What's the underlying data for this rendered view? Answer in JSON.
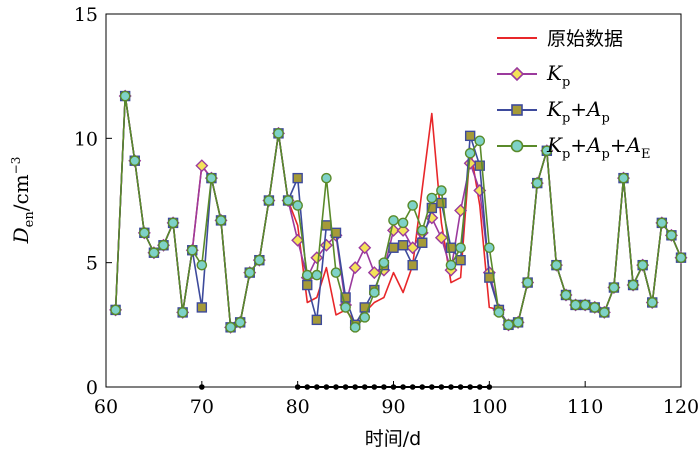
{
  "chart_data": {
    "type": "line",
    "xlabel": "时间/d",
    "ylabel": {
      "main": "D",
      "sub": "en",
      "unit": "/cm",
      "sup": "−3"
    },
    "xlim": [
      60,
      120
    ],
    "ylim": [
      0,
      15
    ],
    "xticks": [
      "60",
      "70",
      "80",
      "90",
      "100",
      "110",
      "120"
    ],
    "yticks": [
      "0",
      "5",
      "10",
      "15"
    ],
    "grid": false,
    "legend_position": "top-right",
    "series": [
      {
        "name": "原始数据",
        "color": "#e8272a",
        "marker": "none",
        "x": [
          61,
          62,
          63,
          64,
          65,
          66,
          67,
          68,
          69,
          70,
          71,
          72,
          73,
          74,
          75,
          76,
          77,
          78,
          79,
          80,
          81,
          82,
          83,
          84,
          85,
          86,
          87,
          88,
          89,
          90,
          91,
          92,
          93,
          94,
          95,
          96,
          97,
          98,
          99,
          100,
          101,
          102,
          103,
          104,
          105,
          106,
          107,
          108,
          109,
          110,
          111,
          112,
          113,
          114,
          115,
          116,
          117,
          118,
          119,
          120
        ],
        "values": [
          3.1,
          11.7,
          9.1,
          6.2,
          5.4,
          5.7,
          6.6,
          3.0,
          5.5,
          8.9,
          8.4,
          6.7,
          2.4,
          2.6,
          4.6,
          5.1,
          7.5,
          10.2,
          7.5,
          6.5,
          3.4,
          3.6,
          4.8,
          2.9,
          3.1,
          2.6,
          3.0,
          3.4,
          3.6,
          4.6,
          3.8,
          4.9,
          8.0,
          11.0,
          6.6,
          4.2,
          4.4,
          9.6,
          7.3,
          3.2,
          3.1,
          2.5,
          2.6,
          4.2,
          8.2,
          9.5,
          4.9,
          3.7,
          3.3,
          3.3,
          3.2,
          3.0,
          4.0,
          8.4,
          4.1,
          4.9,
          3.4,
          6.6,
          6.1,
          5.2
        ]
      },
      {
        "name": "Kp",
        "color": "#9b3a9d",
        "fill": "#f3e35a",
        "marker": "diamond",
        "x": [
          61,
          62,
          63,
          64,
          65,
          66,
          67,
          68,
          69,
          70,
          71,
          72,
          73,
          74,
          75,
          76,
          77,
          78,
          79,
          80,
          81,
          82,
          83,
          84,
          85,
          86,
          87,
          88,
          89,
          90,
          91,
          92,
          93,
          94,
          95,
          96,
          97,
          98,
          99,
          100,
          101,
          102,
          103,
          104,
          105,
          106,
          107,
          108,
          109,
          110,
          111,
          112,
          113,
          114,
          115,
          116,
          117,
          118,
          119,
          120
        ],
        "values": [
          3.1,
          11.7,
          9.1,
          6.2,
          5.4,
          5.7,
          6.6,
          3.0,
          5.5,
          8.9,
          8.4,
          6.7,
          2.4,
          2.6,
          4.6,
          5.1,
          7.5,
          10.2,
          7.5,
          5.9,
          4.4,
          5.2,
          5.7,
          6.1,
          3.3,
          4.8,
          5.6,
          4.6,
          4.7,
          6.3,
          6.3,
          5.6,
          6.2,
          6.8,
          6.0,
          4.7,
          7.1,
          9.0,
          7.9,
          4.6,
          3.1,
          2.5,
          2.6,
          4.2,
          8.2,
          9.5,
          4.9,
          3.7,
          3.3,
          3.3,
          3.2,
          3.0,
          4.0,
          8.4,
          4.1,
          4.9,
          3.4,
          6.6,
          6.1,
          5.2
        ]
      },
      {
        "name": "Kp+Ap",
        "color": "#3d4a9c",
        "fill": "#a59a38",
        "marker": "square",
        "x": [
          61,
          62,
          63,
          64,
          65,
          66,
          67,
          68,
          69,
          70,
          71,
          72,
          73,
          74,
          75,
          76,
          77,
          78,
          79,
          80,
          81,
          82,
          83,
          84,
          85,
          86,
          87,
          88,
          89,
          90,
          91,
          92,
          93,
          94,
          95,
          96,
          97,
          98,
          99,
          100,
          101,
          102,
          103,
          104,
          105,
          106,
          107,
          108,
          109,
          110,
          111,
          112,
          113,
          114,
          115,
          116,
          117,
          118,
          119,
          120
        ],
        "values": [
          3.1,
          11.7,
          9.1,
          6.2,
          5.4,
          5.7,
          6.6,
          3.0,
          5.5,
          3.2,
          8.4,
          6.7,
          2.4,
          2.6,
          4.6,
          5.1,
          7.5,
          10.2,
          7.5,
          8.4,
          4.1,
          2.7,
          6.5,
          6.2,
          3.6,
          2.5,
          3.2,
          3.9,
          4.9,
          5.6,
          5.7,
          4.9,
          5.8,
          7.2,
          7.4,
          5.6,
          5.1,
          10.1,
          8.9,
          4.4,
          3.1,
          2.5,
          2.6,
          4.2,
          8.2,
          9.5,
          4.9,
          3.7,
          3.3,
          3.3,
          3.2,
          3.0,
          4.0,
          8.4,
          4.1,
          4.9,
          3.4,
          6.6,
          6.1,
          5.2
        ]
      },
      {
        "name": "Kp+Ap+AE",
        "color": "#5a8a2a",
        "fill": "#7ed2c8",
        "marker": "circle",
        "x": [
          61,
          62,
          63,
          64,
          65,
          66,
          67,
          68,
          69,
          70,
          71,
          72,
          73,
          74,
          75,
          76,
          77,
          78,
          79,
          80,
          81,
          82,
          83,
          84,
          85,
          86,
          87,
          88,
          89,
          90,
          91,
          92,
          93,
          94,
          95,
          96,
          97,
          98,
          99,
          100,
          101,
          102,
          103,
          104,
          105,
          106,
          107,
          108,
          109,
          110,
          111,
          112,
          113,
          114,
          115,
          116,
          117,
          118,
          119,
          120
        ],
        "values": [
          3.1,
          11.7,
          9.1,
          6.2,
          5.4,
          5.7,
          6.6,
          3.0,
          5.5,
          4.9,
          8.4,
          6.7,
          2.4,
          2.6,
          4.6,
          5.1,
          7.5,
          10.2,
          7.5,
          7.3,
          4.5,
          4.5,
          8.4,
          4.6,
          3.2,
          2.4,
          2.8,
          3.8,
          5.0,
          6.7,
          6.6,
          7.3,
          6.3,
          7.6,
          7.9,
          4.9,
          5.6,
          9.4,
          9.9,
          5.6,
          3.0,
          2.5,
          2.6,
          4.2,
          8.2,
          9.5,
          4.9,
          3.7,
          3.3,
          3.3,
          3.2,
          3.0,
          4.0,
          8.4,
          4.1,
          4.9,
          3.4,
          6.6,
          6.1,
          5.2
        ]
      }
    ],
    "axis_markers": {
      "x": [
        70,
        80,
        81,
        82,
        83,
        84,
        85,
        86,
        87,
        88,
        89,
        90,
        91,
        92,
        93,
        94,
        95,
        96,
        97,
        98,
        99,
        100
      ],
      "y": 0
    },
    "legend": [
      {
        "label": "原始数据",
        "series": 0
      },
      {
        "main": "K",
        "sub": "p",
        "series": 1
      },
      {
        "parts": [
          [
            "K",
            "p"
          ],
          [
            "+A",
            "p"
          ]
        ],
        "series": 2
      },
      {
        "parts": [
          [
            "K",
            "p"
          ],
          [
            "+A",
            "p"
          ],
          [
            "+A",
            "E"
          ]
        ],
        "series": 3
      }
    ]
  }
}
